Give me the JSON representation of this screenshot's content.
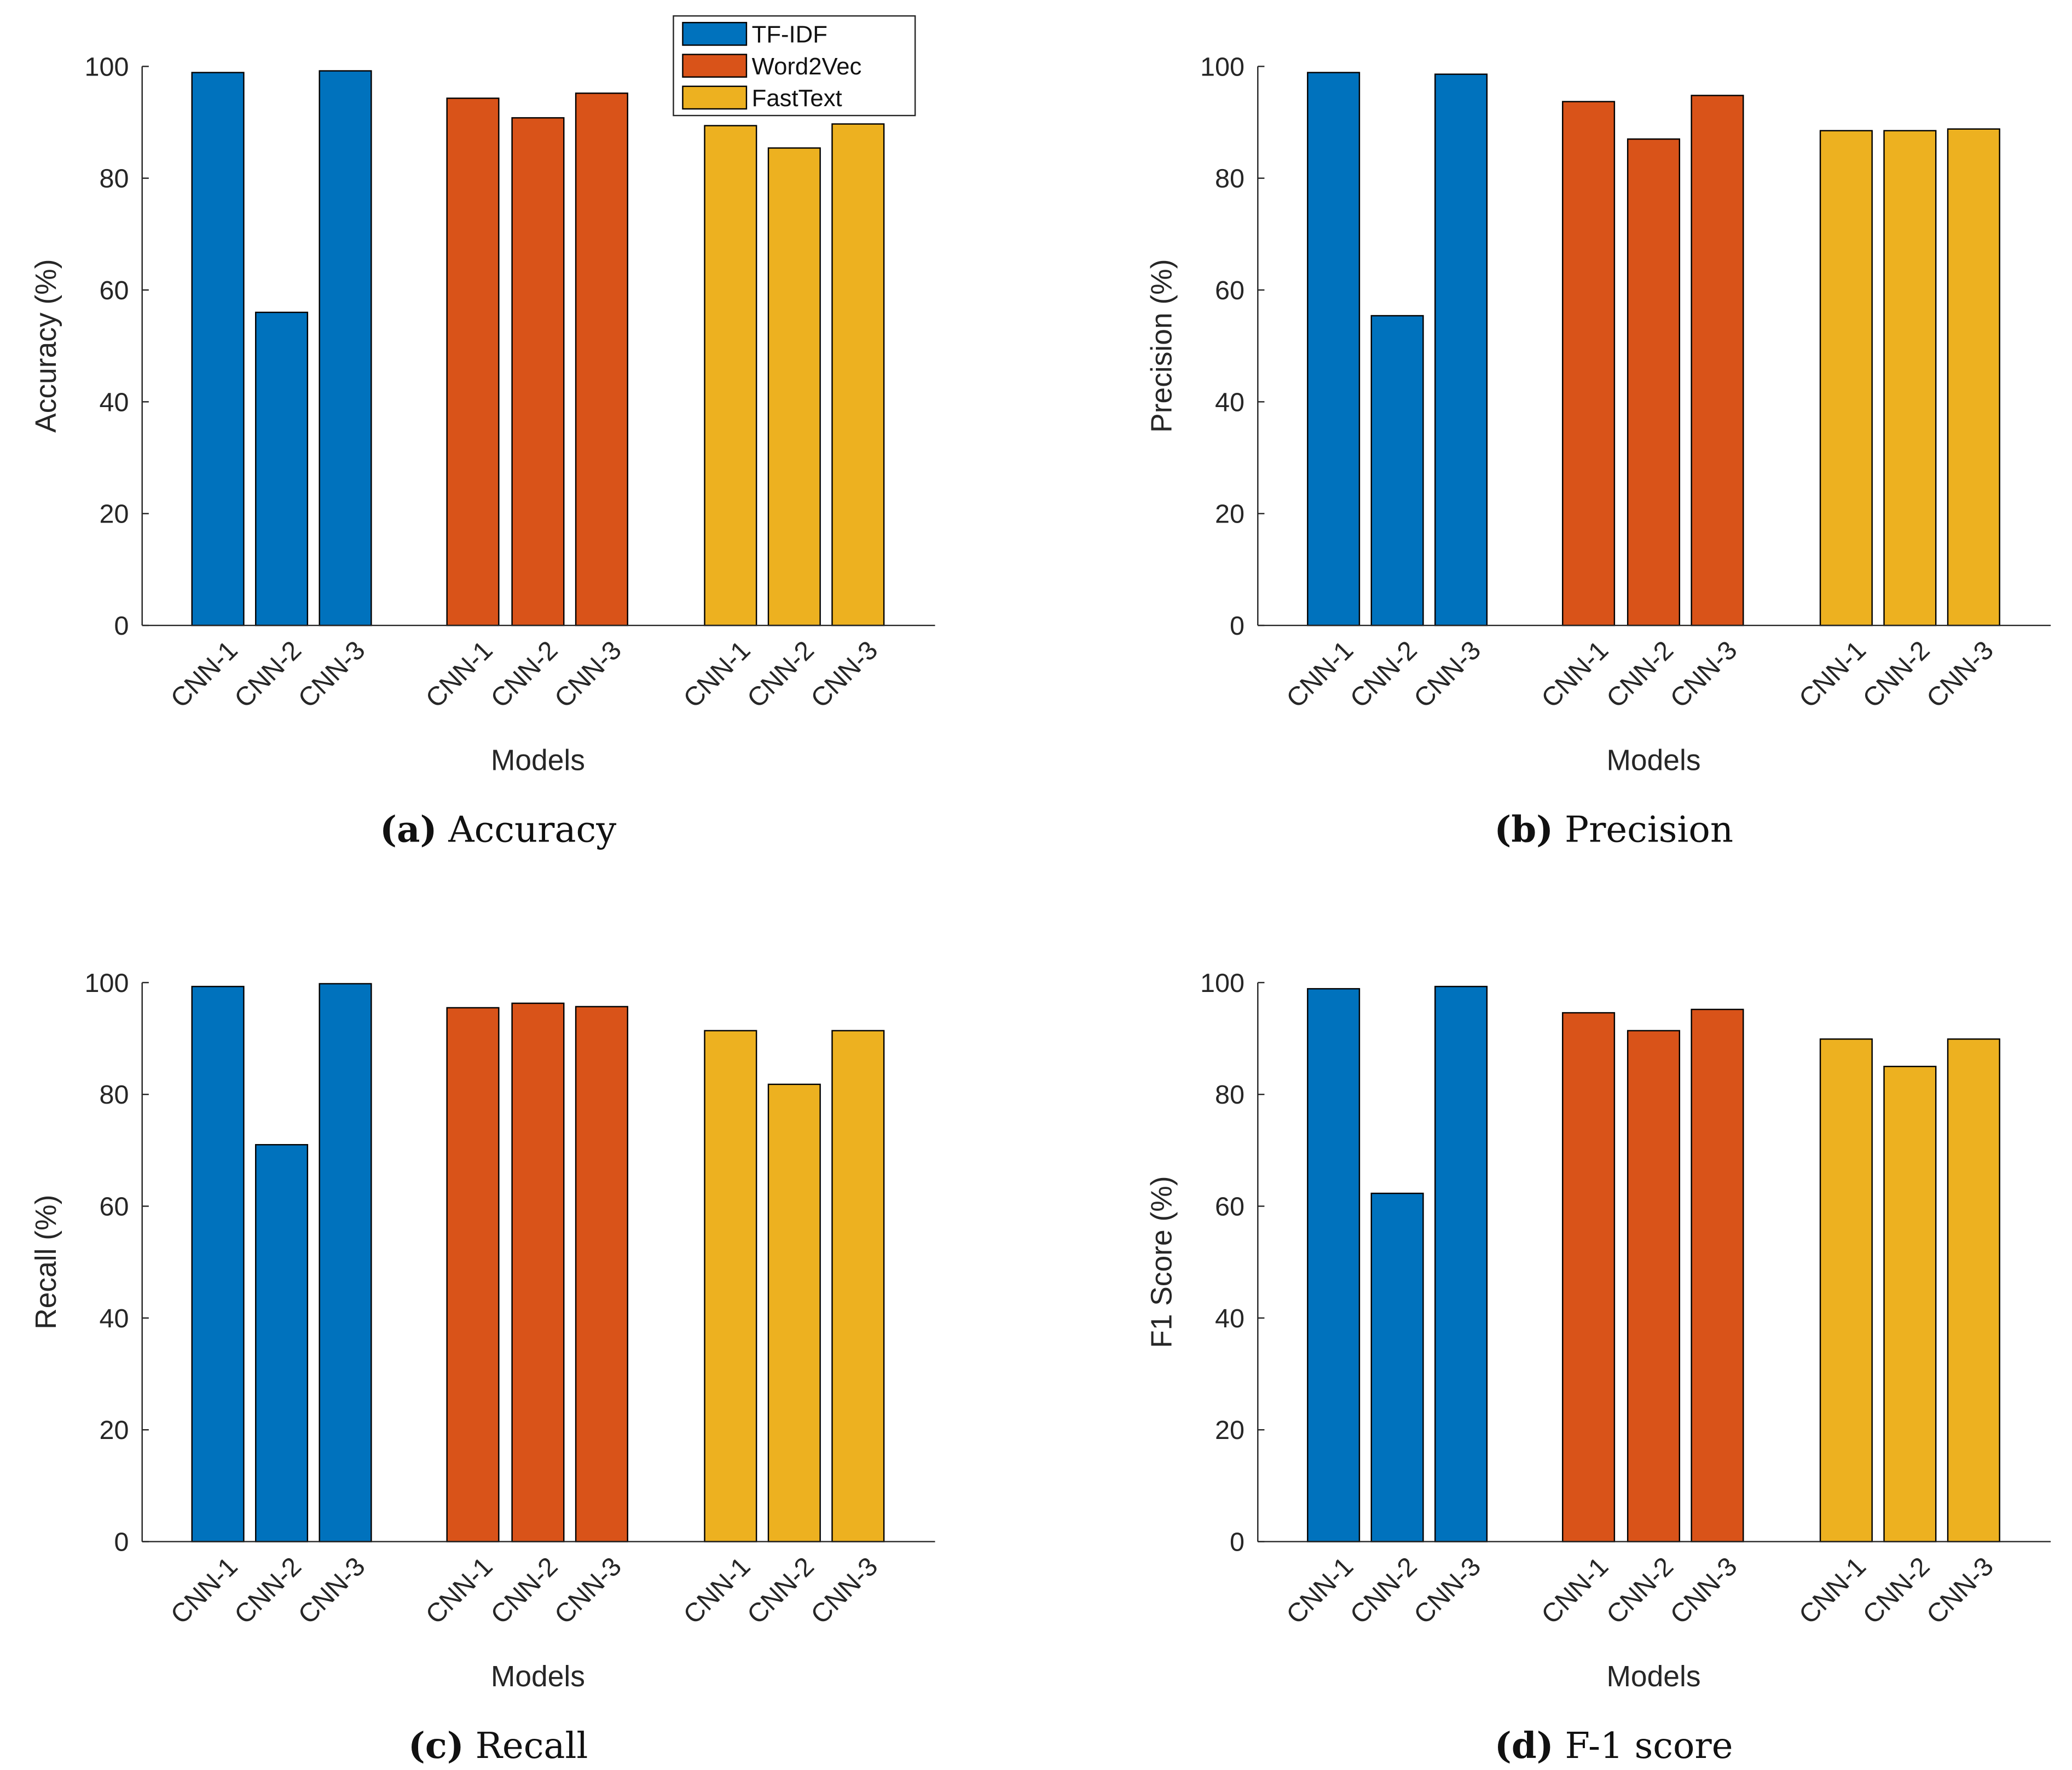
{
  "legend": [
    "TF-IDF",
    "Word2Vec",
    "FastText"
  ],
  "colors": {
    "TF-IDF": "#0072BD",
    "Word2Vec": "#D95319",
    "FastText": "#EDB120"
  },
  "chart_data": [
    {
      "type": "bar",
      "caption_tag": "(a)",
      "caption": "Accuracy",
      "xlabel": "Models",
      "ylabel": "Accuracy (%)",
      "ylim": [
        0,
        100
      ],
      "yticks": [
        0,
        20,
        40,
        60,
        80,
        100
      ],
      "categories": [
        "CNN-1",
        "CNN-2",
        "CNN-3"
      ],
      "legend_position": "top-right",
      "series": [
        {
          "name": "TF-IDF",
          "values": [
            98.9,
            56.0,
            99.2
          ]
        },
        {
          "name": "Word2Vec",
          "values": [
            94.3,
            90.8,
            95.2
          ]
        },
        {
          "name": "FastText",
          "values": [
            89.4,
            85.4,
            89.7
          ]
        }
      ]
    },
    {
      "type": "bar",
      "caption_tag": "(b)",
      "caption": "Precision",
      "xlabel": "Models",
      "ylabel": "Precision (%)",
      "ylim": [
        0,
        100
      ],
      "yticks": [
        0,
        20,
        40,
        60,
        80,
        100
      ],
      "categories": [
        "CNN-1",
        "CNN-2",
        "CNN-3"
      ],
      "series": [
        {
          "name": "TF-IDF",
          "values": [
            98.9,
            55.4,
            98.6
          ]
        },
        {
          "name": "Word2Vec",
          "values": [
            93.7,
            87.0,
            94.8
          ]
        },
        {
          "name": "FastText",
          "values": [
            88.5,
            88.5,
            88.8
          ]
        }
      ]
    },
    {
      "type": "bar",
      "caption_tag": "(c)",
      "caption": "Recall",
      "xlabel": "Models",
      "ylabel": "Recall (%)",
      "ylim": [
        0,
        100
      ],
      "yticks": [
        0,
        20,
        40,
        60,
        80,
        100
      ],
      "categories": [
        "CNN-1",
        "CNN-2",
        "CNN-3"
      ],
      "series": [
        {
          "name": "TF-IDF",
          "values": [
            99.3,
            71.0,
            99.8
          ]
        },
        {
          "name": "Word2Vec",
          "values": [
            95.5,
            96.3,
            95.7
          ]
        },
        {
          "name": "FastText",
          "values": [
            91.4,
            81.8,
            91.4
          ]
        }
      ]
    },
    {
      "type": "bar",
      "caption_tag": "(d)",
      "caption": "F-1 score",
      "xlabel": "Models",
      "ylabel": "F1 Score (%)",
      "ylim": [
        0,
        100
      ],
      "yticks": [
        0,
        20,
        40,
        60,
        80,
        100
      ],
      "categories": [
        "CNN-1",
        "CNN-2",
        "CNN-3"
      ],
      "series": [
        {
          "name": "TF-IDF",
          "values": [
            98.9,
            62.3,
            99.3
          ]
        },
        {
          "name": "Word2Vec",
          "values": [
            94.6,
            91.4,
            95.2
          ]
        },
        {
          "name": "FastText",
          "values": [
            89.9,
            85.0,
            89.9
          ]
        }
      ]
    }
  ]
}
